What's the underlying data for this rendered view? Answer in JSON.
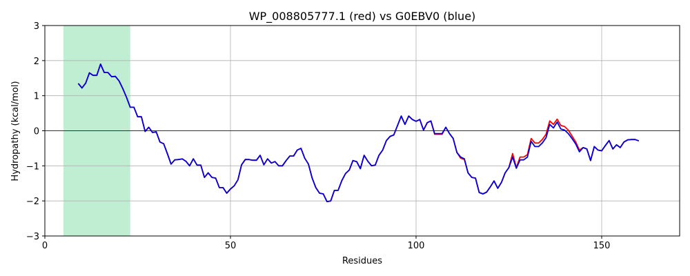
{
  "chart_data": {
    "type": "line",
    "title": "WP_008805777.1 (red) vs G0EBV0 (blue)",
    "xlabel": "Residues",
    "ylabel": "Hydropathy (kcal/mol)",
    "xlim": [
      0,
      171
    ],
    "ylim": [
      -3,
      3
    ],
    "xticks": [
      0,
      50,
      100,
      150
    ],
    "yticks": [
      -3,
      -2,
      -1,
      0,
      1,
      2,
      3
    ],
    "grid": true,
    "zero_line": true,
    "highlight_region": {
      "x_start": 5,
      "x_end": 23,
      "color": "#c0eed3"
    },
    "series": [
      {
        "color": "#ff0000",
        "x": [
          9,
          10,
          11,
          12,
          13,
          14,
          15,
          16,
          17,
          18,
          19,
          20,
          21,
          22,
          23,
          24,
          25,
          26,
          27,
          28,
          29,
          30,
          31,
          32,
          33,
          34,
          35,
          36,
          37,
          38,
          39,
          40,
          41,
          42,
          43,
          44,
          45,
          46,
          47,
          48,
          49,
          50,
          51,
          52,
          53,
          54,
          55,
          56,
          57,
          58,
          59,
          60,
          61,
          62,
          63,
          64,
          65,
          66,
          67,
          68,
          69,
          70,
          71,
          72,
          73,
          74,
          75,
          76,
          77,
          78,
          79,
          80,
          81,
          82,
          83,
          84,
          85,
          86,
          87,
          88,
          89,
          90,
          91,
          92,
          93,
          94,
          95,
          96,
          97,
          98,
          99,
          100,
          101,
          102,
          103,
          104,
          105,
          106,
          107,
          108,
          109,
          110,
          111,
          112,
          113,
          114,
          115,
          116,
          117,
          118,
          119,
          120,
          121,
          122,
          123,
          124,
          125,
          126,
          127,
          128,
          129,
          130,
          131,
          132,
          133,
          134,
          135,
          136,
          137,
          138,
          139,
          140,
          141,
          142,
          143,
          144,
          145,
          146,
          147,
          148,
          149,
          150,
          151,
          152,
          153,
          154,
          155,
          156,
          157,
          158,
          159,
          160
        ],
        "y": [
          1.35,
          1.22,
          1.36,
          1.65,
          1.58,
          1.58,
          1.9,
          1.66,
          1.66,
          1.54,
          1.55,
          1.42,
          1.2,
          0.95,
          0.67,
          0.67,
          0.4,
          0.4,
          -0.02,
          0.1,
          -0.05,
          -0.03,
          -0.32,
          -0.37,
          -0.65,
          -0.95,
          -0.83,
          -0.82,
          -0.8,
          -0.87,
          -1.0,
          -0.8,
          -0.98,
          -0.98,
          -1.33,
          -1.2,
          -1.33,
          -1.35,
          -1.62,
          -1.62,
          -1.78,
          -1.66,
          -1.57,
          -1.4,
          -0.97,
          -0.82,
          -0.82,
          -0.84,
          -0.84,
          -0.7,
          -0.97,
          -0.8,
          -0.92,
          -0.88,
          -1.0,
          -1.0,
          -0.85,
          -0.72,
          -0.72,
          -0.55,
          -0.5,
          -0.78,
          -0.95,
          -1.35,
          -1.62,
          -1.78,
          -1.8,
          -2.02,
          -2.0,
          -1.7,
          -1.7,
          -1.42,
          -1.22,
          -1.12,
          -0.85,
          -0.88,
          -1.08,
          -0.7,
          -0.87,
          -1.0,
          -0.98,
          -0.7,
          -0.55,
          -0.28,
          -0.16,
          -0.12,
          0.15,
          0.42,
          0.18,
          0.42,
          0.32,
          0.27,
          0.32,
          0.02,
          0.23,
          0.28,
          -0.1,
          -0.1,
          -0.1,
          0.1,
          -0.08,
          -0.22,
          -0.62,
          -0.78,
          -0.82,
          -1.2,
          -1.33,
          -1.35,
          -1.76,
          -1.8,
          -1.75,
          -1.6,
          -1.43,
          -1.64,
          -1.47,
          -1.2,
          -1.05,
          -0.65,
          -1.05,
          -0.75,
          -0.75,
          -0.68,
          -0.22,
          -0.35,
          -0.35,
          -0.25,
          -0.1,
          0.28,
          0.18,
          0.33,
          0.15,
          0.12,
          0.02,
          -0.15,
          -0.32,
          -0.55,
          -0.48,
          -0.52,
          -0.85,
          -0.45,
          -0.55,
          -0.57,
          -0.42,
          -0.28,
          -0.52,
          -0.4,
          -0.48,
          -0.32,
          -0.26,
          -0.25,
          -0.25,
          -0.29
        ]
      },
      {
        "color": "#0000dd",
        "x": [
          9,
          10,
          11,
          12,
          13,
          14,
          15,
          16,
          17,
          18,
          19,
          20,
          21,
          22,
          23,
          24,
          25,
          26,
          27,
          28,
          29,
          30,
          31,
          32,
          33,
          34,
          35,
          36,
          37,
          38,
          39,
          40,
          41,
          42,
          43,
          44,
          45,
          46,
          47,
          48,
          49,
          50,
          51,
          52,
          53,
          54,
          55,
          56,
          57,
          58,
          59,
          60,
          61,
          62,
          63,
          64,
          65,
          66,
          67,
          68,
          69,
          70,
          71,
          72,
          73,
          74,
          75,
          76,
          77,
          78,
          79,
          80,
          81,
          82,
          83,
          84,
          85,
          86,
          87,
          88,
          89,
          90,
          91,
          92,
          93,
          94,
          95,
          96,
          97,
          98,
          99,
          100,
          101,
          102,
          103,
          104,
          105,
          106,
          107,
          108,
          109,
          110,
          111,
          112,
          113,
          114,
          115,
          116,
          117,
          118,
          119,
          120,
          121,
          122,
          123,
          124,
          125,
          126,
          127,
          128,
          129,
          130,
          131,
          132,
          133,
          134,
          135,
          136,
          137,
          138,
          139,
          140,
          141,
          142,
          143,
          144,
          145,
          146,
          147,
          148,
          149,
          150,
          151,
          152,
          153,
          154,
          155,
          156,
          157,
          158,
          159,
          160
        ],
        "y": [
          1.35,
          1.22,
          1.36,
          1.65,
          1.58,
          1.58,
          1.9,
          1.66,
          1.66,
          1.54,
          1.55,
          1.42,
          1.2,
          0.95,
          0.67,
          0.67,
          0.4,
          0.4,
          -0.02,
          0.1,
          -0.05,
          -0.03,
          -0.32,
          -0.37,
          -0.65,
          -0.95,
          -0.83,
          -0.82,
          -0.8,
          -0.87,
          -1.0,
          -0.8,
          -0.98,
          -0.98,
          -1.33,
          -1.2,
          -1.33,
          -1.35,
          -1.62,
          -1.62,
          -1.78,
          -1.66,
          -1.57,
          -1.4,
          -0.97,
          -0.82,
          -0.82,
          -0.84,
          -0.84,
          -0.7,
          -0.97,
          -0.8,
          -0.92,
          -0.88,
          -1.0,
          -1.0,
          -0.85,
          -0.72,
          -0.72,
          -0.55,
          -0.5,
          -0.78,
          -0.95,
          -1.35,
          -1.62,
          -1.78,
          -1.8,
          -2.02,
          -2.0,
          -1.7,
          -1.7,
          -1.42,
          -1.22,
          -1.12,
          -0.85,
          -0.88,
          -1.08,
          -0.7,
          -0.87,
          -1.0,
          -0.98,
          -0.7,
          -0.55,
          -0.28,
          -0.16,
          -0.12,
          0.15,
          0.42,
          0.18,
          0.42,
          0.32,
          0.27,
          0.32,
          0.02,
          0.23,
          0.28,
          -0.08,
          -0.08,
          -0.08,
          0.1,
          -0.08,
          -0.22,
          -0.62,
          -0.75,
          -0.8,
          -1.2,
          -1.33,
          -1.35,
          -1.76,
          -1.8,
          -1.75,
          -1.6,
          -1.43,
          -1.64,
          -1.47,
          -1.2,
          -1.05,
          -0.75,
          -1.07,
          -0.83,
          -0.83,
          -0.75,
          -0.3,
          -0.45,
          -0.45,
          -0.35,
          -0.2,
          0.18,
          0.08,
          0.25,
          0.05,
          0.02,
          -0.08,
          -0.22,
          -0.38,
          -0.6,
          -0.48,
          -0.52,
          -0.85,
          -0.45,
          -0.55,
          -0.57,
          -0.42,
          -0.28,
          -0.52,
          -0.4,
          -0.48,
          -0.32,
          -0.26,
          -0.25,
          -0.25,
          -0.29
        ]
      }
    ]
  }
}
